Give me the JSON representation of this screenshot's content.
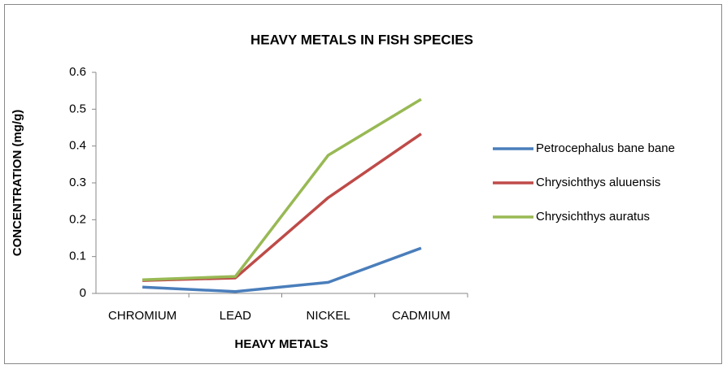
{
  "chart_data": {
    "type": "line",
    "title": "HEAVY METALS IN FISH SPECIES",
    "x_label": "HEAVY METALS",
    "y_label": "CONCENTRATION (mg/g)",
    "categories": [
      "CHROMIUM",
      "LEAD",
      "NICKEL",
      "CADMIUM"
    ],
    "series": [
      {
        "name": "Petrocephalus bane bane",
        "color": "#4a7ebb",
        "values": [
          0.017,
          0.005,
          0.03,
          0.123
        ]
      },
      {
        "name": "Chrysichthys aluuensis",
        "color": "#be4b48",
        "values": [
          0.035,
          0.042,
          0.26,
          0.433
        ]
      },
      {
        "name": "Chrysichthys auratus",
        "color": "#98b954",
        "values": [
          0.037,
          0.046,
          0.375,
          0.527
        ]
      }
    ],
    "ylim": [
      0,
      0.6
    ],
    "yticks": [
      0,
      0.1,
      0.2,
      0.3,
      0.4,
      0.5,
      0.6
    ],
    "grid": false,
    "legend": "right"
  }
}
